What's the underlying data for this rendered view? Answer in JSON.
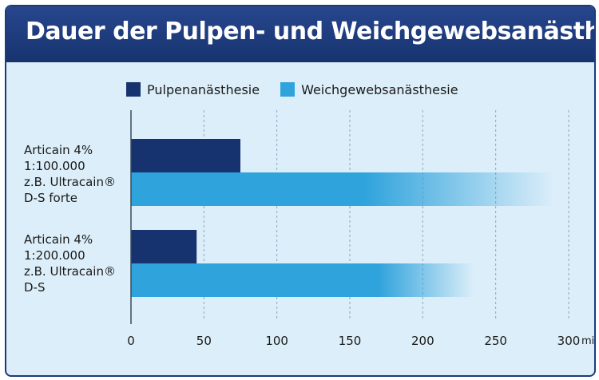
{
  "chart_data": {
    "type": "bar",
    "orientation": "horizontal",
    "title": "Dauer der Pulpen- und Weichgewebsanästhesie*",
    "categories": [
      [
        "Articain 4%",
        "1:100.000",
        "z.B. Ultracain®",
        "D-S forte"
      ],
      [
        "Articain 4%",
        "1:200.000",
        "z.B. Ultracain®",
        "D-S"
      ]
    ],
    "series": [
      {
        "name": "Pulpenanästhesie",
        "values": [
          75,
          45
        ],
        "color": "#17336f"
      },
      {
        "name": "Weichgewebsanästhesie",
        "values": [
          290,
          235
        ],
        "color": "#2fa3dc"
      }
    ],
    "xlim": [
      0,
      300
    ],
    "xticks": [
      "0",
      "50",
      "100",
      "150",
      "200",
      "250",
      "300"
    ],
    "xunit": "min",
    "grid": "vertical-dashed",
    "legend": "top"
  }
}
